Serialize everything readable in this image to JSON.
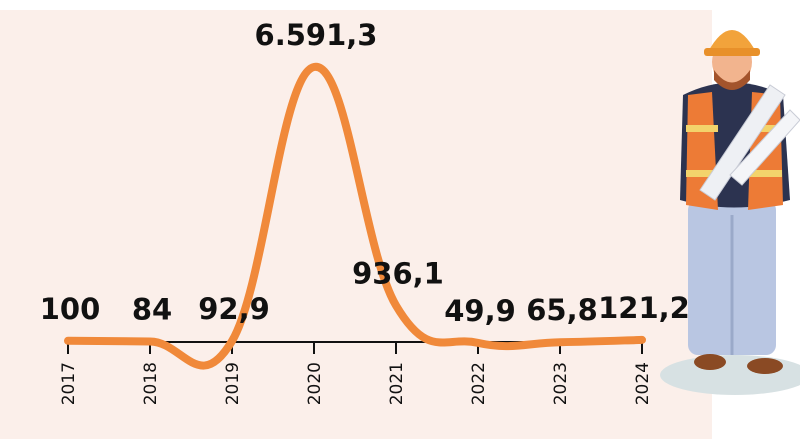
{
  "chart_data": {
    "type": "line",
    "categories": [
      "2017",
      "2018",
      "2019",
      "2020",
      "2021",
      "2022",
      "2023",
      "2024"
    ],
    "values": [
      100,
      84,
      92.9,
      6591.3,
      936.1,
      49.9,
      65.8,
      121.2
    ],
    "value_labels": [
      "100",
      "84",
      "92,9",
      "6.591,3",
      "936,1",
      "49,9",
      "65,8",
      "121,2"
    ],
    "color": "#f0893a"
  }
}
